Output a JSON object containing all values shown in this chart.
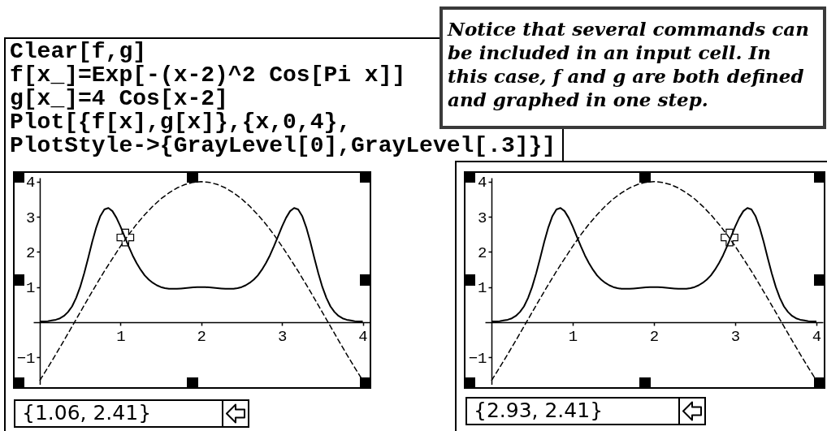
{
  "chart_data": [
    {
      "type": "line",
      "x": [
        0,
        0.05,
        0.1,
        0.15,
        0.2,
        0.25,
        0.3,
        0.35,
        0.4,
        0.45,
        0.5,
        0.55,
        0.6,
        0.65,
        0.7,
        0.75,
        0.8,
        0.85,
        0.9,
        0.95,
        1,
        1.05,
        1.1,
        1.15,
        1.2,
        1.25,
        1.3,
        1.35,
        1.4,
        1.45,
        1.5,
        1.55,
        1.6,
        1.65,
        1.7,
        1.75,
        1.8,
        1.85,
        1.9,
        1.95,
        2,
        2.05,
        2.1,
        2.15,
        2.2,
        2.25,
        2.3,
        2.35,
        2.4,
        2.45,
        2.5,
        2.55,
        2.6,
        2.65,
        2.7,
        2.75,
        2.8,
        2.85,
        2.9,
        2.95,
        3,
        3.05,
        3.1,
        3.15,
        3.2,
        3.25,
        3.3,
        3.35,
        3.4,
        3.45,
        3.5,
        3.55,
        3.6,
        3.65,
        3.7,
        3.75,
        3.8,
        3.85,
        3.9,
        3.95,
        4
      ],
      "series": [
        {
          "color": "#000000",
          "values": [
            0.02,
            0.02,
            0.03,
            0.05,
            0.07,
            0.11,
            0.18,
            0.29,
            0.45,
            0.69,
            1.0,
            1.39,
            1.83,
            2.29,
            2.7,
            3.02,
            3.21,
            3.25,
            3.16,
            2.97,
            2.72,
            2.44,
            2.16,
            1.9,
            1.68,
            1.49,
            1.33,
            1.21,
            1.12,
            1.05,
            1.0,
            0.97,
            0.95,
            0.95,
            0.95,
            0.96,
            0.97,
            0.98,
            0.99,
            1.0,
            1.0,
            1.0,
            0.99,
            0.98,
            0.97,
            0.96,
            0.95,
            0.95,
            0.95,
            0.97,
            1.0,
            1.05,
            1.12,
            1.21,
            1.33,
            1.49,
            1.68,
            1.9,
            2.16,
            2.44,
            2.72,
            2.97,
            3.16,
            3.25,
            3.21,
            3.02,
            2.7,
            2.29,
            1.83,
            1.39,
            1.0,
            0.69,
            0.45,
            0.29,
            0.18,
            0.11,
            0.07,
            0.05,
            0.03,
            0.02,
            0.02
          ]
        },
        {
          "color": "#000000",
          "line_style": "dashed",
          "x": [
            0,
            0.1,
            0.2,
            0.3,
            0.4,
            0.5,
            0.6,
            0.7,
            0.8,
            0.9,
            1,
            1.1,
            1.2,
            1.3,
            1.4,
            1.5,
            1.6,
            1.7,
            1.8,
            1.9,
            2,
            2.1,
            2.2,
            2.3,
            2.4,
            2.5,
            2.6,
            2.7,
            2.8,
            2.9,
            3,
            3.1,
            3.2,
            3.3,
            3.4,
            3.5,
            3.6,
            3.7,
            3.8,
            3.9,
            4
          ],
          "values": [
            -1.66,
            -1.29,
            -0.91,
            -0.52,
            -0.12,
            0.28,
            0.68,
            1.07,
            1.45,
            1.81,
            2.16,
            2.49,
            2.79,
            3.06,
            3.3,
            3.51,
            3.68,
            3.82,
            3.92,
            3.98,
            4.0,
            3.98,
            3.92,
            3.82,
            3.68,
            3.51,
            3.3,
            3.06,
            2.79,
            2.49,
            2.16,
            1.81,
            1.45,
            1.07,
            0.68,
            0.28,
            -0.12,
            -0.52,
            -0.91,
            -1.29,
            -1.66
          ]
        },
        {
          "type": "scatter",
          "marker": "cross",
          "color": "#000000",
          "x": [
            1.06
          ],
          "values": [
            2.41
          ]
        }
      ],
      "xlim": [
        -0.08,
        4.08
      ],
      "ylim": [
        -1.77,
        4.11
      ],
      "xticks": [
        1,
        2,
        3,
        4
      ],
      "yticks": [
        -1,
        1,
        2,
        3,
        4
      ],
      "grid": false,
      "annotations": [
        "Clear[f,g]",
        "f[x_]=Exp[-(x-2)^2 Cos[Pi x]]",
        "g[x_]=4 Cos[x-2]",
        "Plot[{f[x],g[x]},{x,0,4},",
        "PlotStyle->{GrayLevel[0],GrayLevel[.3]}]",
        "Notice that several commands can\nbe included in an input cell. In\nthis case, f and g are both defined\nand graphed in one step.",
        "{1.06, 2.41}"
      ]
    },
    {
      "type": "line",
      "x": [
        0,
        0.05,
        0.1,
        0.15,
        0.2,
        0.25,
        0.3,
        0.35,
        0.4,
        0.45,
        0.5,
        0.55,
        0.6,
        0.65,
        0.7,
        0.75,
        0.8,
        0.85,
        0.9,
        0.95,
        1,
        1.05,
        1.1,
        1.15,
        1.2,
        1.25,
        1.3,
        1.35,
        1.4,
        1.45,
        1.5,
        1.55,
        1.6,
        1.65,
        1.7,
        1.75,
        1.8,
        1.85,
        1.9,
        1.95,
        2,
        2.05,
        2.1,
        2.15,
        2.2,
        2.25,
        2.3,
        2.35,
        2.4,
        2.45,
        2.5,
        2.55,
        2.6,
        2.65,
        2.7,
        2.75,
        2.8,
        2.85,
        2.9,
        2.95,
        3,
        3.05,
        3.1,
        3.15,
        3.2,
        3.25,
        3.3,
        3.35,
        3.4,
        3.45,
        3.5,
        3.55,
        3.6,
        3.65,
        3.7,
        3.75,
        3.8,
        3.85,
        3.9,
        3.95,
        4
      ],
      "series": [
        {
          "color": "#000000",
          "values": [
            0.02,
            0.02,
            0.03,
            0.05,
            0.07,
            0.11,
            0.18,
            0.29,
            0.45,
            0.69,
            1.0,
            1.39,
            1.83,
            2.29,
            2.7,
            3.02,
            3.21,
            3.25,
            3.16,
            2.97,
            2.72,
            2.44,
            2.16,
            1.9,
            1.68,
            1.49,
            1.33,
            1.21,
            1.12,
            1.05,
            1.0,
            0.97,
            0.95,
            0.95,
            0.95,
            0.96,
            0.97,
            0.98,
            0.99,
            1.0,
            1.0,
            1.0,
            0.99,
            0.98,
            0.97,
            0.96,
            0.95,
            0.95,
            0.95,
            0.97,
            1.0,
            1.05,
            1.12,
            1.21,
            1.33,
            1.49,
            1.68,
            1.9,
            2.16,
            2.44,
            2.72,
            2.97,
            3.16,
            3.25,
            3.21,
            3.02,
            2.7,
            2.29,
            1.83,
            1.39,
            1.0,
            0.69,
            0.45,
            0.29,
            0.18,
            0.11,
            0.07,
            0.05,
            0.03,
            0.02,
            0.02
          ]
        },
        {
          "color": "#000000",
          "line_style": "dashed",
          "x": [
            0,
            0.1,
            0.2,
            0.3,
            0.4,
            0.5,
            0.6,
            0.7,
            0.8,
            0.9,
            1,
            1.1,
            1.2,
            1.3,
            1.4,
            1.5,
            1.6,
            1.7,
            1.8,
            1.9,
            2,
            2.1,
            2.2,
            2.3,
            2.4,
            2.5,
            2.6,
            2.7,
            2.8,
            2.9,
            3,
            3.1,
            3.2,
            3.3,
            3.4,
            3.5,
            3.6,
            3.7,
            3.8,
            3.9,
            4
          ],
          "values": [
            -1.66,
            -1.29,
            -0.91,
            -0.52,
            -0.12,
            0.28,
            0.68,
            1.07,
            1.45,
            1.81,
            2.16,
            2.49,
            2.79,
            3.06,
            3.3,
            3.51,
            3.68,
            3.82,
            3.92,
            3.98,
            4.0,
            3.98,
            3.92,
            3.82,
            3.68,
            3.51,
            3.3,
            3.06,
            2.79,
            2.49,
            2.16,
            1.81,
            1.45,
            1.07,
            0.68,
            0.28,
            -0.12,
            -0.52,
            -0.91,
            -1.29,
            -1.66
          ]
        },
        {
          "type": "scatter",
          "marker": "cross",
          "color": "#000000",
          "x": [
            2.93
          ],
          "values": [
            2.41
          ]
        }
      ],
      "xlim": [
        -0.08,
        4.08
      ],
      "ylim": [
        -1.77,
        4.11
      ],
      "xticks": [
        1,
        2,
        3,
        4
      ],
      "yticks": [
        -1,
        1,
        2,
        3,
        4
      ],
      "grid": false,
      "annotations": [
        "{2.93, 2.41}"
      ]
    }
  ]
}
